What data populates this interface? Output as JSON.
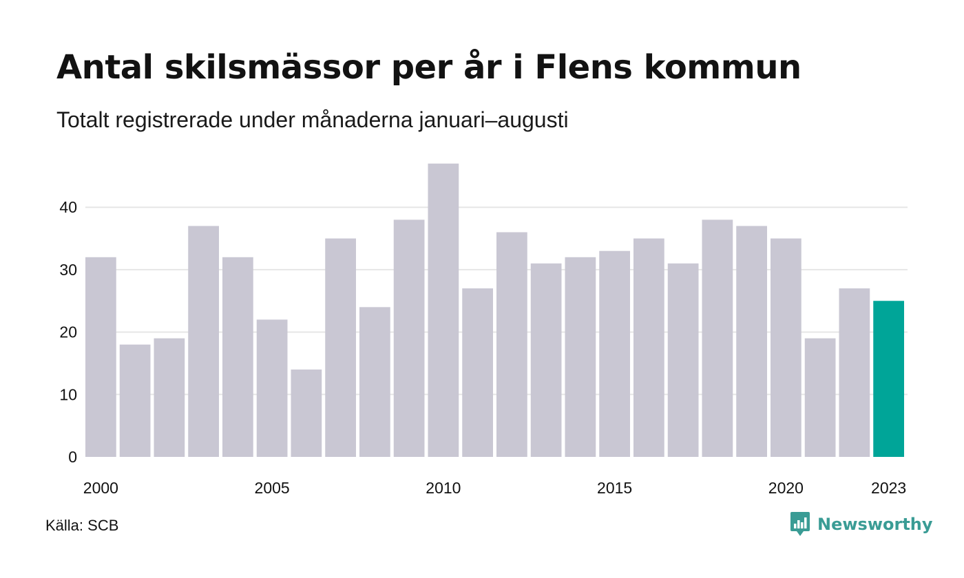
{
  "header": {
    "title": "Antal skilsmässor per år i Flens kommun",
    "subtitle": "Totalt registrerade under månaderna januari–augusti"
  },
  "footer": {
    "source": "Källa: SCB",
    "brand": "Newsworthy",
    "brand_icon": "bar-chart-speech-bubble-icon"
  },
  "chart_data": {
    "type": "bar",
    "categories": [
      "2000",
      "2001",
      "2002",
      "2003",
      "2004",
      "2005",
      "2006",
      "2007",
      "2008",
      "2009",
      "2010",
      "2011",
      "2012",
      "2013",
      "2014",
      "2015",
      "2016",
      "2017",
      "2018",
      "2019",
      "2020",
      "2021",
      "2022",
      "2023"
    ],
    "values": [
      32,
      18,
      19,
      37,
      32,
      22,
      14,
      35,
      24,
      38,
      47,
      27,
      36,
      31,
      32,
      33,
      35,
      31,
      38,
      37,
      35,
      19,
      27,
      25
    ],
    "x_tick_labels": [
      "2000",
      "2005",
      "2010",
      "2015",
      "2020",
      "2023"
    ],
    "y_ticks": [
      0,
      10,
      20,
      30,
      40
    ],
    "ylim": [
      0,
      47
    ],
    "xlabel": "",
    "ylabel": "",
    "grid": true,
    "highlight_category": "2023",
    "colors": {
      "bar": "#c9c7d3",
      "highlight": "#00a598",
      "grid": "#e6e6e6",
      "text": "#111111",
      "brand": "#3a9c95"
    }
  }
}
